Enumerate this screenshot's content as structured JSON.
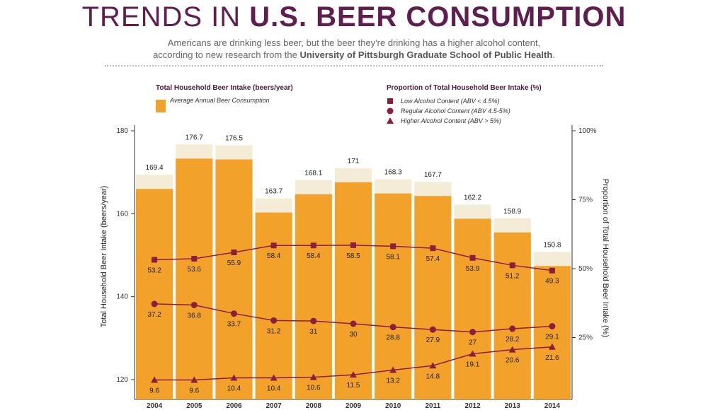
{
  "header": {
    "title_light": "TRENDS IN",
    "title_bold": "U.S. BEER CONSUMPTION",
    "subtitle_line1": "Americans are drinking less beer, but the beer they're drinking has a higher alcohol content,",
    "subtitle_line2_prefix": "according to new research from the",
    "subtitle_line2_bold": "University of Pittsburgh Graduate School of Public Health",
    "subtitle_line2_suffix": "."
  },
  "legend": {
    "left_title": "Total Household Beer Intake (beers/year)",
    "left_item": "Average Annual Beer Consumption",
    "right_title": "Proportion of Total Household Beer Intake (%)",
    "right_items": [
      "Low Alcohol Content (ABV < 4.5%)",
      "Regular Alcohol Content (ABV 4.5-5%)",
      "Higher Alcohol Content (ABV > 5%)"
    ]
  },
  "colors": {
    "title": "#5e1f4e",
    "bar": "#f2a22a",
    "foam": "#f4ecd6",
    "series": "#8c1d3b"
  },
  "chart_data": {
    "type": "bar",
    "title": "Trends in U.S. Beer Consumption",
    "categories": [
      "2004",
      "2005",
      "2006",
      "2007",
      "2008",
      "2009",
      "2010",
      "2011",
      "2012",
      "2013",
      "2014"
    ],
    "bar_values": [
      169.4,
      176.7,
      176.5,
      163.7,
      168.1,
      171,
      168.3,
      167.7,
      162.2,
      158.9,
      150.8
    ],
    "bar_labels": [
      "169.4",
      "176.7",
      "176.5",
      "163.7",
      "168.1",
      "171",
      "168.3",
      "167.7",
      "162.2",
      "158.9",
      "150.8"
    ],
    "ylabel": "Total Household Beer Intake (beers/year)",
    "ylim": [
      118,
      180
    ],
    "yticks": [
      "180",
      "160",
      "140",
      "120"
    ],
    "y2label": "Proportion of Total Household Beer Intake (%)",
    "y2lim": [
      0,
      100
    ],
    "y2ticks": [
      "100%",
      "75%",
      "50%",
      "25%"
    ],
    "series": [
      {
        "name": "Low Alcohol Content (ABV < 4.5%)",
        "marker": "square",
        "values": [
          53.2,
          53.6,
          55.9,
          58.4,
          58.4,
          58.5,
          58.1,
          57.4,
          53.9,
          51.2,
          49.3
        ],
        "labels": [
          "53.2",
          "53.6",
          "55.9",
          "58.4",
          "58.4",
          "58.5",
          "58.1",
          "57.4",
          "53.9",
          "51.2",
          "49.3"
        ]
      },
      {
        "name": "Regular Alcohol Content (ABV 4.5-5%)",
        "marker": "circle",
        "values": [
          37.2,
          36.8,
          33.7,
          31.2,
          31,
          30,
          28.8,
          27.9,
          27,
          28.2,
          29.1
        ],
        "labels": [
          "37.2",
          "36.8",
          "33.7",
          "31.2",
          "31",
          "30",
          "28.8",
          "27.9",
          "27",
          "28.2",
          "29.1"
        ]
      },
      {
        "name": "Higher Alcohol Content (ABV > 5%)",
        "marker": "triangle",
        "values": [
          9.6,
          9.6,
          10.4,
          10.4,
          10.6,
          11.5,
          13.2,
          14.8,
          19.1,
          20.6,
          21.6
        ],
        "labels": [
          "9.6",
          "9.6",
          "10.4",
          "10.4",
          "10.6",
          "11.5",
          "13.2",
          "14.8",
          "19.1",
          "20.6",
          "21.6"
        ]
      }
    ]
  }
}
